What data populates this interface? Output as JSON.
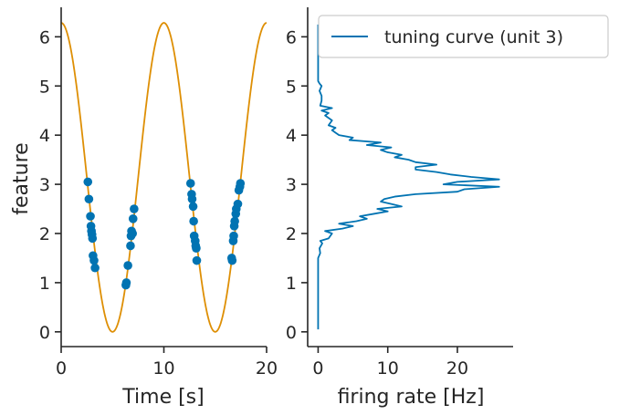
{
  "chart_data": [
    {
      "type": "line",
      "xlabel": "Time [s]",
      "ylabel": "feature",
      "xlim": [
        0,
        20
      ],
      "ylim": [
        -0.3,
        6.6
      ],
      "xticks": [
        "0",
        "10",
        "20"
      ],
      "yticks": [
        "0",
        "1",
        "2",
        "3",
        "4",
        "5",
        "6"
      ],
      "grid": false,
      "series": [
        {
          "kind": "line",
          "color": "#de8f05",
          "function": "3.1416 * (1 + cos(2*pi*t/10))",
          "x_range": [
            0,
            20
          ]
        },
        {
          "kind": "scatter",
          "color": "#0173b2",
          "points": [
            [
              2.6,
              3.05
            ],
            [
              2.7,
              2.7
            ],
            [
              2.85,
              2.35
            ],
            [
              2.9,
              2.15
            ],
            [
              2.95,
              2.05
            ],
            [
              3.0,
              1.98
            ],
            [
              3.05,
              1.9
            ],
            [
              3.1,
              1.55
            ],
            [
              3.2,
              1.45
            ],
            [
              3.3,
              1.3
            ],
            [
              6.3,
              0.95
            ],
            [
              6.35,
              1.0
            ],
            [
              6.5,
              1.35
            ],
            [
              6.75,
              1.75
            ],
            [
              6.8,
              1.95
            ],
            [
              6.85,
              2.05
            ],
            [
              6.95,
              2.0
            ],
            [
              7.0,
              2.3
            ],
            [
              7.1,
              2.5
            ],
            [
              12.6,
              3.02
            ],
            [
              12.7,
              2.8
            ],
            [
              12.75,
              2.7
            ],
            [
              12.85,
              2.55
            ],
            [
              12.9,
              2.25
            ],
            [
              12.95,
              1.95
            ],
            [
              13.05,
              1.85
            ],
            [
              13.1,
              1.75
            ],
            [
              13.15,
              1.7
            ],
            [
              13.2,
              1.45
            ],
            [
              16.6,
              1.5
            ],
            [
              16.65,
              1.45
            ],
            [
              16.75,
              1.85
            ],
            [
              16.8,
              1.95
            ],
            [
              16.85,
              2.15
            ],
            [
              16.9,
              2.25
            ],
            [
              17.0,
              2.4
            ],
            [
              17.05,
              2.5
            ],
            [
              17.2,
              2.6
            ],
            [
              17.3,
              2.88
            ],
            [
              17.4,
              2.95
            ],
            [
              17.45,
              3.02
            ]
          ]
        }
      ]
    },
    {
      "type": "line",
      "xlabel": "firing rate [Hz]",
      "ylabel": "",
      "xlim": [
        -1.5,
        28
      ],
      "ylim": [
        -0.3,
        6.6
      ],
      "xticks": [
        "0",
        "10",
        "20"
      ],
      "yticks": [
        "0",
        "1",
        "2",
        "3",
        "4",
        "5",
        "6"
      ],
      "grid": false,
      "legend": {
        "placement": "top-right",
        "entries": [
          "tuning curve (unit 3)"
        ]
      },
      "series": [
        {
          "name": "tuning curve (unit 3)",
          "color": "#0173b2",
          "orientation": "horizontal",
          "y": [
            0.05,
            0.5,
            1.0,
            1.5,
            1.6,
            1.7,
            1.8,
            1.85,
            1.9,
            2.0,
            2.05,
            2.1,
            2.15,
            2.2,
            2.25,
            2.3,
            2.35,
            2.4,
            2.45,
            2.5,
            2.55,
            2.6,
            2.65,
            2.7,
            2.75,
            2.8,
            2.85,
            2.9,
            2.95,
            3.0,
            3.05,
            3.1,
            3.15,
            3.2,
            3.25,
            3.3,
            3.35,
            3.4,
            3.45,
            3.5,
            3.55,
            3.6,
            3.65,
            3.7,
            3.75,
            3.8,
            3.85,
            3.9,
            3.95,
            4.0,
            4.05,
            4.1,
            4.15,
            4.2,
            4.3,
            4.4,
            4.45,
            4.5,
            4.55,
            4.6,
            4.7,
            4.8,
            4.9,
            5.0,
            5.05,
            5.1,
            5.5,
            6.0,
            6.25
          ],
          "values": [
            0,
            0,
            0,
            0,
            0.3,
            0.2,
            0.6,
            0.3,
            1.5,
            2.0,
            1.0,
            3.5,
            5.0,
            3.0,
            5.5,
            7.0,
            6.0,
            8.0,
            10.0,
            8.5,
            12.0,
            10.5,
            9.0,
            9.5,
            11.0,
            14.0,
            20.0,
            21.0,
            26.0,
            18.0,
            20.0,
            26.0,
            22.0,
            19.0,
            17.0,
            14.0,
            14.0,
            17.0,
            14.0,
            13.0,
            11.0,
            12.0,
            10.0,
            9.0,
            10.5,
            7.0,
            9.0,
            4.5,
            5.0,
            3.0,
            2.5,
            2.0,
            2.5,
            1.5,
            2.0,
            1.0,
            1.5,
            0.5,
            2.0,
            0.3,
            0.5,
            0.5,
            0.2,
            0.5,
            0.2,
            0,
            0,
            0,
            0
          ]
        }
      ]
    }
  ]
}
